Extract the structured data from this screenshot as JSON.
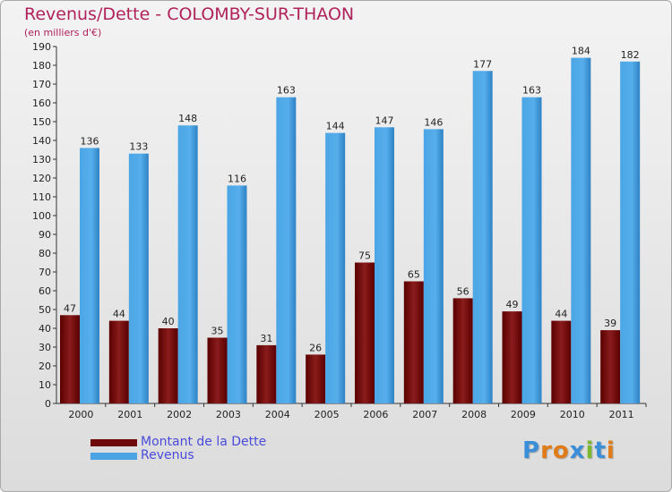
{
  "title": "Revenus/Dette - COLOMBY-SUR-THAON",
  "subtitle": "(en milliers d'€)",
  "logo": "Proxiti",
  "colors": {
    "dette": "#6e0a0a",
    "revenus": "#4aa3e3",
    "title": "#b0225a",
    "legend_text": "#4a4adc"
  },
  "legend": [
    {
      "label": "Montant de la Dette",
      "color": "#6e0a0a"
    },
    {
      "label": "Revenus",
      "color": "#4aa3e3"
    }
  ],
  "chart_data": {
    "type": "bar",
    "title": "Revenus/Dette - COLOMBY-SUR-THAON",
    "subtitle": "(en milliers d'€)",
    "categories": [
      "2000",
      "2001",
      "2002",
      "2003",
      "2004",
      "2005",
      "2006",
      "2007",
      "2008",
      "2009",
      "2010",
      "2011"
    ],
    "series": [
      {
        "name": "Montant de la Dette",
        "values": [
          47,
          44,
          40,
          35,
          31,
          26,
          75,
          65,
          56,
          49,
          44,
          39
        ]
      },
      {
        "name": "Revenus",
        "values": [
          136,
          133,
          148,
          116,
          163,
          144,
          147,
          146,
          177,
          163,
          184,
          182
        ]
      }
    ],
    "ylim": [
      0,
      190
    ],
    "ytick_step": 10,
    "grid": false,
    "legend_position": "bottom-left"
  }
}
